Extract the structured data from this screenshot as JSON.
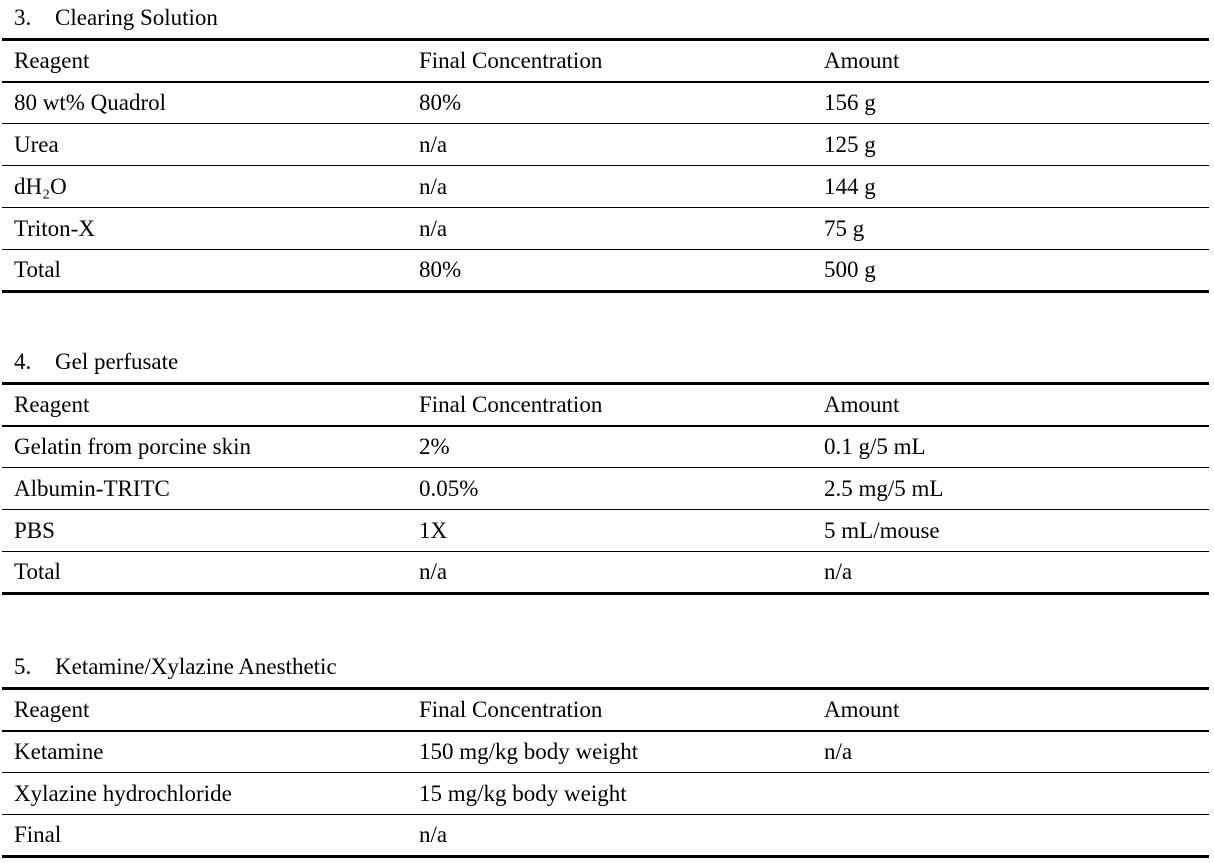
{
  "page": {
    "background": "#ffffff",
    "text_color": "#000000",
    "rule_color": "#000000"
  },
  "tables": [
    {
      "number": "3.",
      "title": "Clearing Solution",
      "columns": [
        "Reagent",
        "Final Concentration",
        "Amount"
      ],
      "rows": [
        [
          "80 wt% Quadrol",
          "80%",
          "156 g"
        ],
        [
          "Urea",
          "n/a",
          "125 g"
        ],
        [
          "dH₂O",
          "n/a",
          "144 g"
        ],
        [
          "Triton-X",
          "n/a",
          "75 g"
        ],
        [
          "Total",
          "80%",
          "500 g"
        ]
      ]
    },
    {
      "number": "4.",
      "title": "Gel perfusate",
      "columns": [
        "Reagent",
        "Final Concentration",
        "Amount"
      ],
      "rows": [
        [
          "Gelatin from porcine skin",
          "2%",
          "0.1 g/5 mL"
        ],
        [
          "Albumin-TRITC",
          "0.05%",
          "2.5 mg/5 mL"
        ],
        [
          "PBS",
          "1X",
          "5 mL/mouse"
        ],
        [
          "Total",
          "n/a",
          "n/a"
        ]
      ]
    },
    {
      "number": "5.",
      "title": "Ketamine/Xylazine Anesthetic",
      "columns": [
        "Reagent",
        "Final Concentration",
        "Amount"
      ],
      "rows": [
        [
          "Ketamine",
          "150 mg/kg body weight",
          "n/a"
        ],
        [
          "Xylazine hydrochloride",
          "15 mg/kg body weight",
          ""
        ],
        [
          "Final",
          "n/a",
          ""
        ]
      ]
    }
  ]
}
